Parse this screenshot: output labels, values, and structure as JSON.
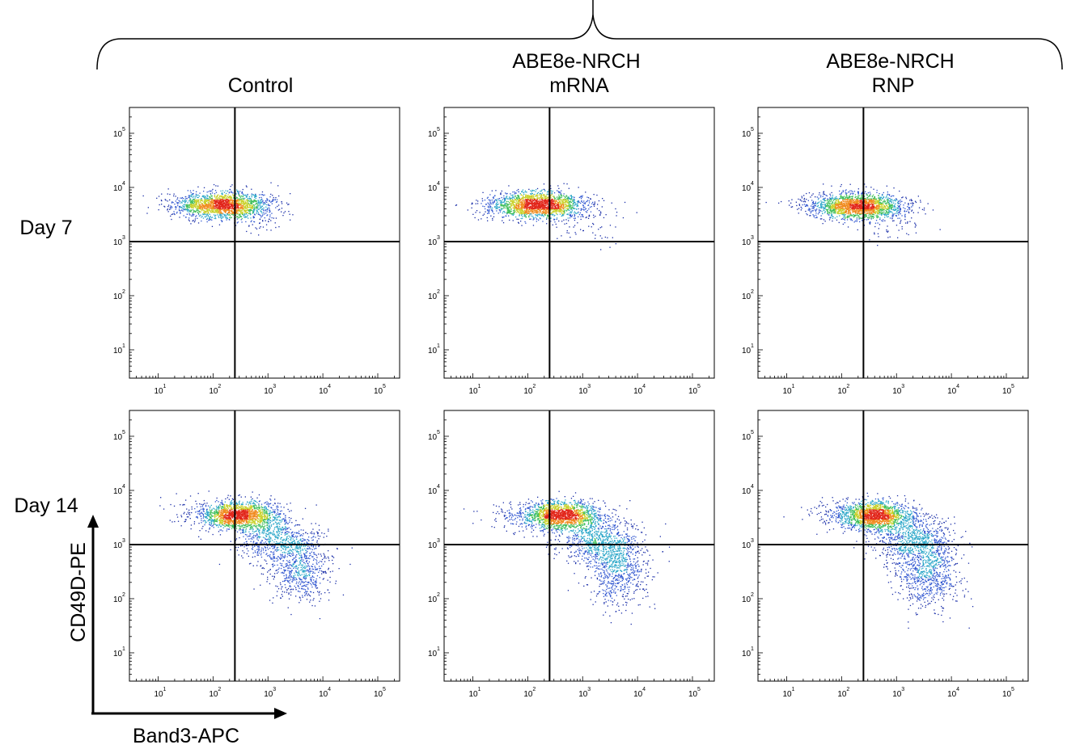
{
  "figure": {
    "columns": [
      {
        "lines": [
          "Control"
        ]
      },
      {
        "lines": [
          "ABE8e-NRCH",
          "mRNA"
        ]
      },
      {
        "lines": [
          "ABE8e-NRCH",
          "RNP"
        ]
      }
    ],
    "rows": [
      "Day 7",
      "Day 14"
    ],
    "x_axis_label": "Band3-APC",
    "y_axis_label": "CD49D-PE"
  },
  "chart_data": {
    "type": "scatter",
    "subtype": "flow-cytometry-density-dot-plot",
    "xlabel": "Band3-APC",
    "ylabel": "CD49D-PE",
    "xscale": "log",
    "yscale": "log",
    "xlim": [
      3,
      250000
    ],
    "ylim": [
      3,
      300000
    ],
    "x_ticks": [
      {
        "base": "10",
        "exp": "1"
      },
      {
        "base": "10",
        "exp": "2"
      },
      {
        "base": "10",
        "exp": "3"
      },
      {
        "base": "10",
        "exp": "4"
      },
      {
        "base": "10",
        "exp": "5"
      }
    ],
    "y_ticks": [
      {
        "base": "10",
        "exp": "1"
      },
      {
        "base": "10",
        "exp": "2"
      },
      {
        "base": "10",
        "exp": "3"
      },
      {
        "base": "10",
        "exp": "4"
      },
      {
        "base": "10",
        "exp": "5"
      }
    ],
    "density_colors": [
      "#1a2ea8",
      "#2f55d0",
      "#2aa6c8",
      "#3fbf5a",
      "#c9d12b",
      "#f08a1e",
      "#e2261b"
    ],
    "panels": [
      {
        "row": "Day 7",
        "column": "Control",
        "gate_x": 250,
        "gate_y": 1000,
        "seed": 11,
        "populations": [
          {
            "cx": 150,
            "cy": 4800,
            "sx": 0.42,
            "sy": 0.12,
            "n": 1900
          },
          {
            "cx": 700,
            "cy": 2500,
            "sx": 0.3,
            "sy": 0.15,
            "n": 60
          },
          {
            "cx": 30,
            "cy": 5000,
            "sx": 0.35,
            "sy": 0.1,
            "n": 50
          }
        ]
      },
      {
        "row": "Day 7",
        "column": "ABE8e-NRCH mRNA",
        "gate_x": 250,
        "gate_y": 1000,
        "seed": 23,
        "populations": [
          {
            "cx": 150,
            "cy": 4800,
            "sx": 0.42,
            "sy": 0.12,
            "n": 1900
          },
          {
            "cx": 900,
            "cy": 2200,
            "sx": 0.35,
            "sy": 0.18,
            "n": 70
          },
          {
            "cx": 30,
            "cy": 5000,
            "sx": 0.35,
            "sy": 0.1,
            "n": 50
          }
        ]
      },
      {
        "row": "Day 7",
        "column": "ABE8e-NRCH RNP",
        "gate_x": 250,
        "gate_y": 1000,
        "seed": 37,
        "populations": [
          {
            "cx": 200,
            "cy": 4600,
            "sx": 0.42,
            "sy": 0.12,
            "n": 1900
          },
          {
            "cx": 900,
            "cy": 2200,
            "sx": 0.35,
            "sy": 0.18,
            "n": 70
          },
          {
            "cx": 30,
            "cy": 5000,
            "sx": 0.35,
            "sy": 0.1,
            "n": 50
          }
        ]
      },
      {
        "row": "Day 14",
        "column": "Control",
        "gate_x": 250,
        "gate_y": 1000,
        "seed": 41,
        "populations": [
          {
            "cx": 300,
            "cy": 3500,
            "sx": 0.35,
            "sy": 0.13,
            "n": 1700
          },
          {
            "cx": 1500,
            "cy": 1200,
            "sx": 0.35,
            "sy": 0.22,
            "n": 700
          },
          {
            "cx": 4000,
            "cy": 350,
            "sx": 0.28,
            "sy": 0.3,
            "n": 600
          },
          {
            "cx": 60,
            "cy": 4000,
            "sx": 0.35,
            "sy": 0.15,
            "n": 80
          }
        ]
      },
      {
        "row": "Day 14",
        "column": "ABE8e-NRCH mRNA",
        "gate_x": 250,
        "gate_y": 1000,
        "seed": 53,
        "populations": [
          {
            "cx": 400,
            "cy": 3500,
            "sx": 0.35,
            "sy": 0.13,
            "n": 1700
          },
          {
            "cx": 2000,
            "cy": 1200,
            "sx": 0.35,
            "sy": 0.22,
            "n": 700
          },
          {
            "cx": 4500,
            "cy": 350,
            "sx": 0.28,
            "sy": 0.33,
            "n": 700
          },
          {
            "cx": 60,
            "cy": 4000,
            "sx": 0.35,
            "sy": 0.15,
            "n": 80
          }
        ]
      },
      {
        "row": "Day 14",
        "column": "ABE8e-NRCH RNP",
        "gate_x": 250,
        "gate_y": 1000,
        "seed": 67,
        "populations": [
          {
            "cx": 400,
            "cy": 3500,
            "sx": 0.35,
            "sy": 0.13,
            "n": 1700
          },
          {
            "cx": 2000,
            "cy": 1200,
            "sx": 0.35,
            "sy": 0.22,
            "n": 750
          },
          {
            "cx": 4000,
            "cy": 300,
            "sx": 0.28,
            "sy": 0.33,
            "n": 750
          },
          {
            "cx": 60,
            "cy": 4000,
            "sx": 0.35,
            "sy": 0.15,
            "n": 80
          }
        ]
      }
    ]
  }
}
